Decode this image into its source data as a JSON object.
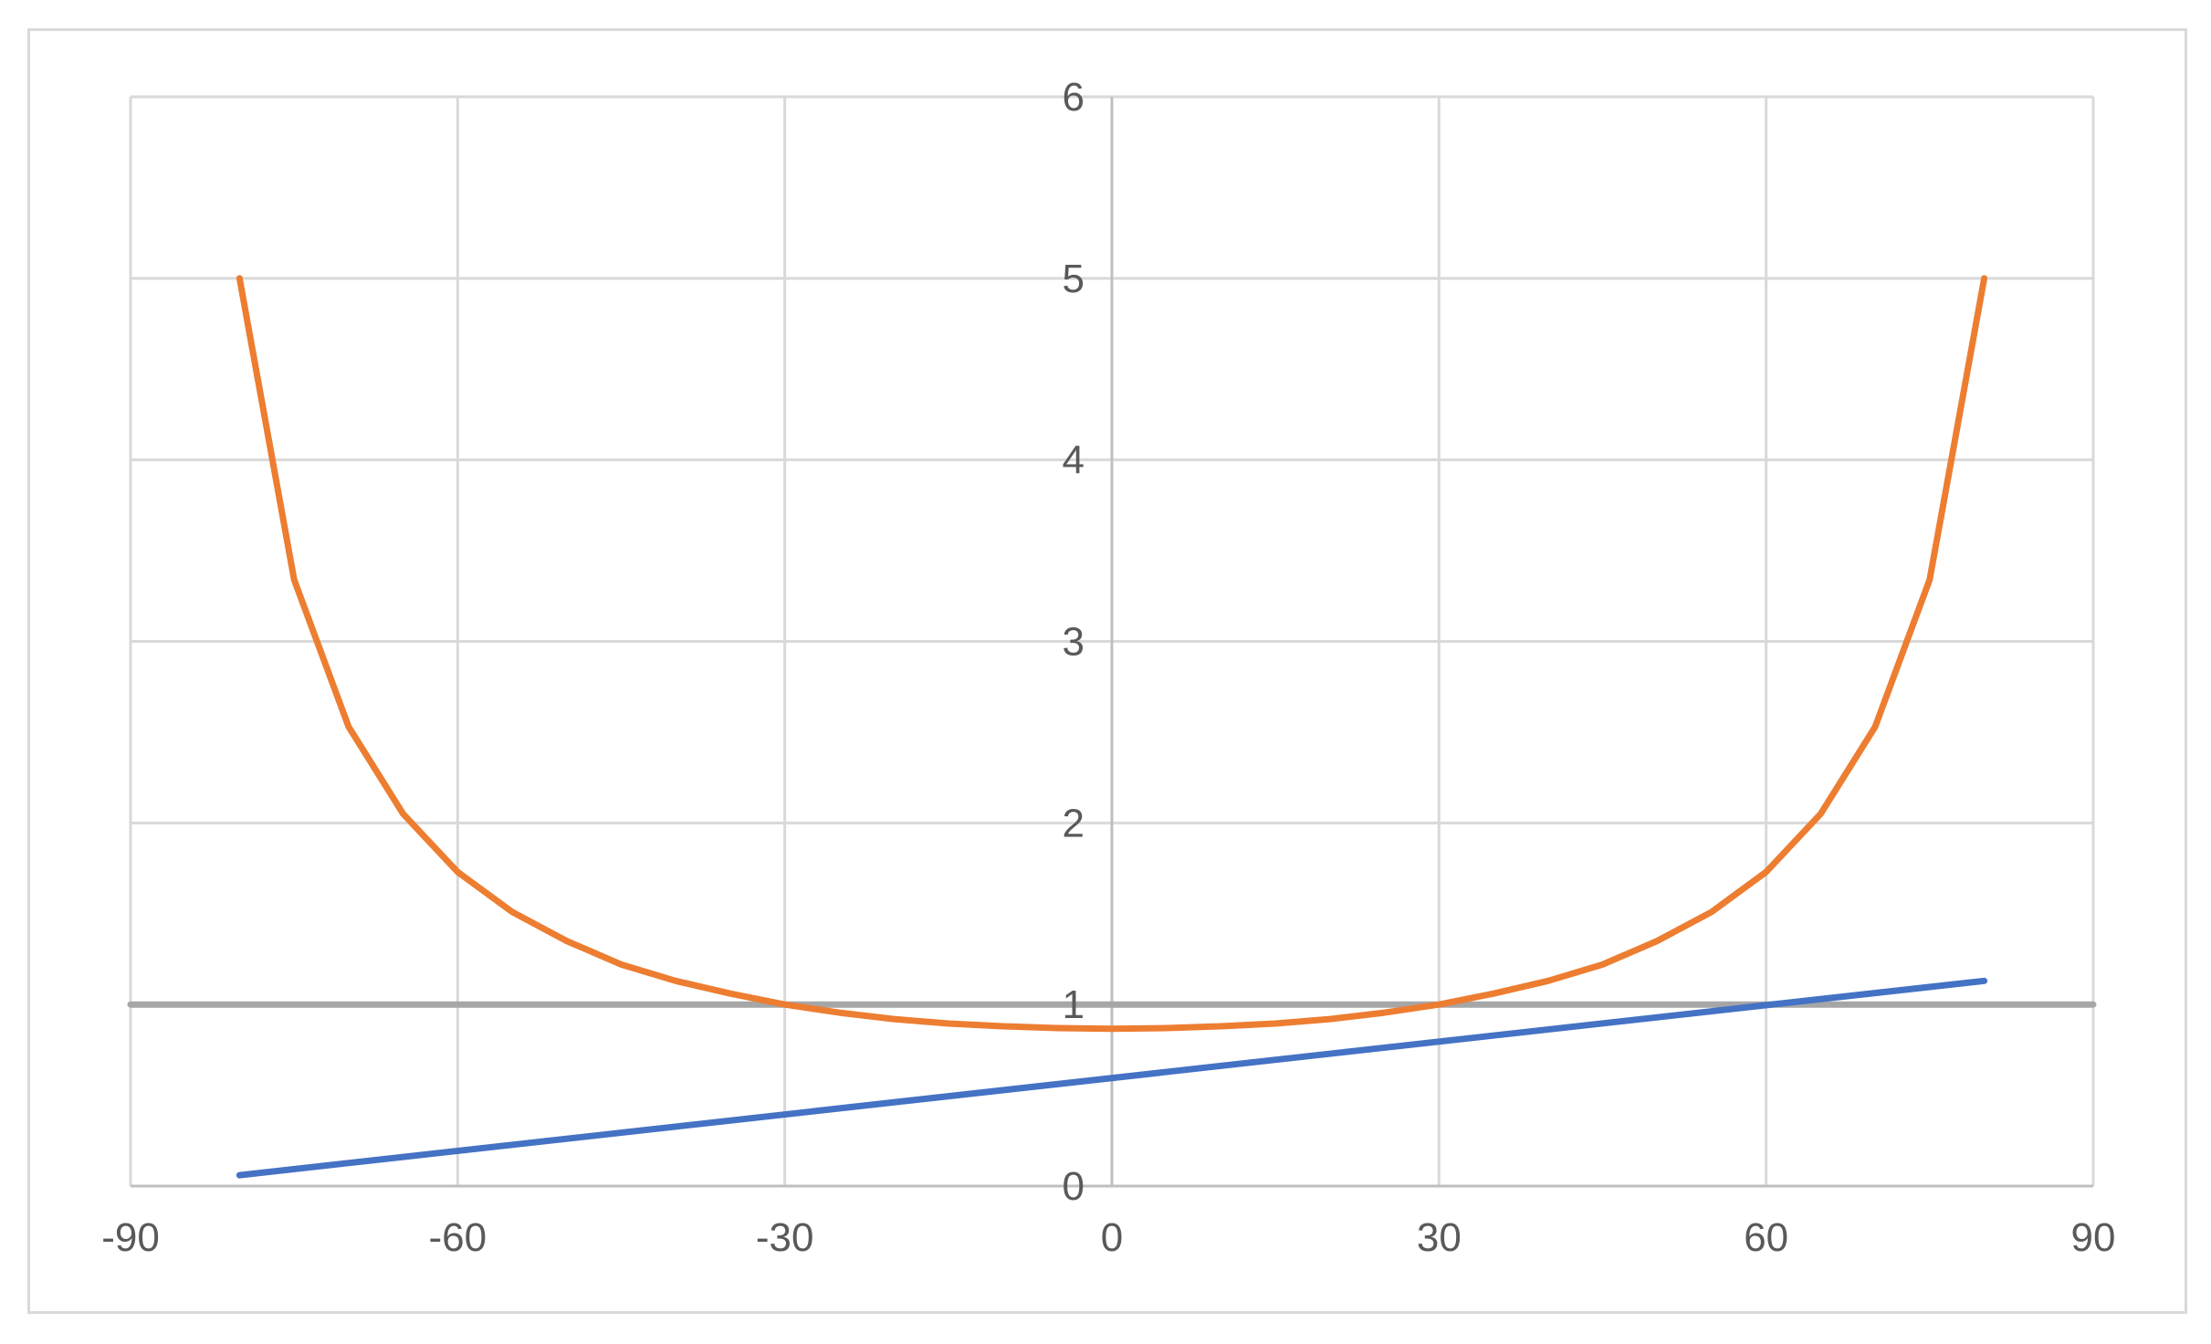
{
  "chart_data": {
    "type": "line",
    "title": "",
    "xlabel": "",
    "ylabel": "",
    "xlim": [
      -90,
      90
    ],
    "ylim": [
      0,
      6
    ],
    "x_ticks": [
      -90,
      -60,
      -30,
      0,
      30,
      60,
      90
    ],
    "y_ticks": [
      0,
      1,
      2,
      3,
      4,
      5,
      6
    ],
    "x_tick_labels": [
      "-90",
      "-60",
      "-30",
      "0",
      "30",
      "60",
      "90"
    ],
    "y_tick_labels": [
      "0",
      "1",
      "2",
      "3",
      "4",
      "5",
      "6"
    ],
    "grid": true,
    "legend": "none",
    "series": [
      {
        "color": "#ed7d31",
        "x": [
          -80,
          -75,
          -70,
          -65,
          -60,
          -55,
          -50,
          -45,
          -40,
          -35,
          -30,
          -25,
          -20,
          -15,
          -10,
          -5,
          0,
          5,
          10,
          15,
          20,
          25,
          30,
          35,
          40,
          45,
          50,
          55,
          60,
          65,
          70,
          75,
          80
        ],
        "y": [
          5.0,
          3.34,
          2.53,
          2.05,
          1.73,
          1.51,
          1.35,
          1.22,
          1.13,
          1.06,
          1.0,
          0.955,
          0.92,
          0.895,
          0.88,
          0.87,
          0.866,
          0.87,
          0.88,
          0.895,
          0.92,
          0.955,
          1.0,
          1.06,
          1.13,
          1.22,
          1.35,
          1.51,
          1.73,
          2.05,
          2.53,
          3.34,
          5.0
        ]
      },
      {
        "color": "#4472c4",
        "x": [
          -80,
          80
        ],
        "y": [
          0.06,
          1.13
        ]
      },
      {
        "color": "#a6a6a6",
        "x": [
          -90,
          90
        ],
        "y": [
          1,
          1
        ]
      }
    ]
  }
}
